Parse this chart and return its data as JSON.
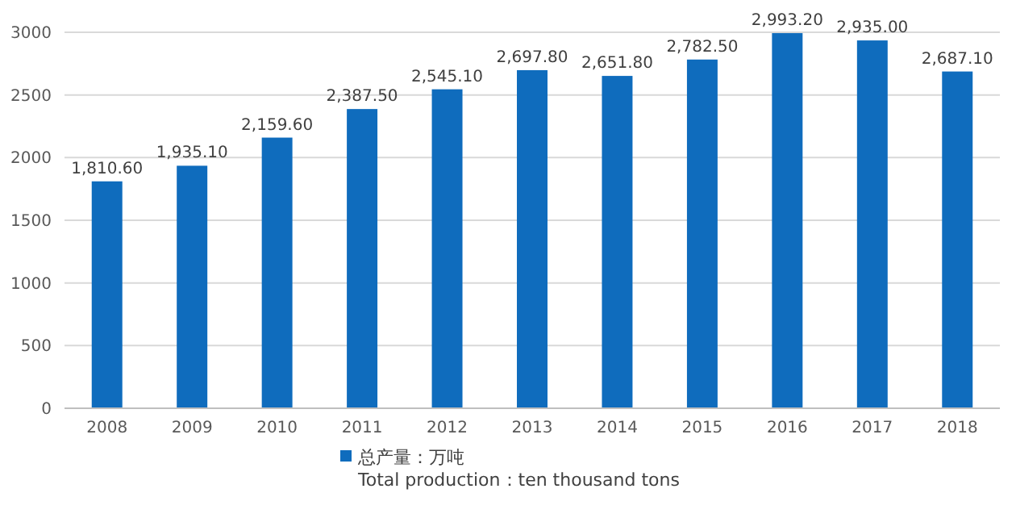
{
  "chart_data": {
    "type": "bar",
    "categories": [
      "2008",
      "2009",
      "2010",
      "2011",
      "2012",
      "2013",
      "2014",
      "2015",
      "2016",
      "2017",
      "2018"
    ],
    "series": [
      {
        "name": "总产量：万吨\nTotal production：ten thousand tons",
        "color": "#0f6cbd",
        "values": [
          1810.6,
          1935.1,
          2159.6,
          2387.5,
          2545.1,
          2697.8,
          2651.8,
          2782.5,
          2993.2,
          2935.0,
          2687.1
        ],
        "value_labels": [
          "1,810.60",
          "1,935.10",
          "2,159.60",
          "2,387.50",
          "2,545.10",
          "2,697.80",
          "2,651.80",
          "2,782.50",
          "2,993.20",
          "2,935.00",
          "2,687.10"
        ]
      }
    ],
    "ylim": [
      0,
      3000
    ],
    "yticks": [
      0,
      500,
      1000,
      1500,
      2000,
      2500,
      3000
    ],
    "grid": "y",
    "legend": "bottom"
  }
}
